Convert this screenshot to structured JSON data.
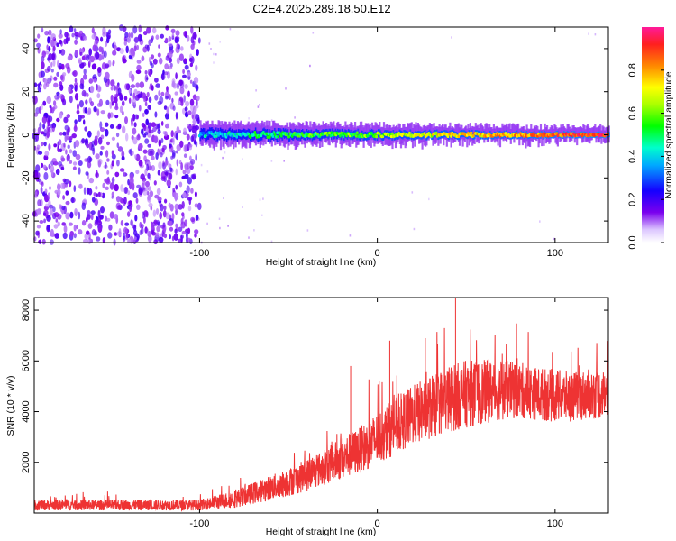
{
  "title": "C2E4.2025.289.18.50.E12",
  "colors": {
    "snr_line": "#ee3333",
    "frame": "#000000",
    "background": "#ffffff"
  },
  "chart_data": [
    {
      "type": "heatmap",
      "name": "spectrogram",
      "xlabel": "Height of straight line (km)",
      "ylabel": "Frequency (Hz)",
      "xlim": [
        -193,
        130
      ],
      "ylim": [
        -50,
        50
      ],
      "xticks": [
        -100,
        0,
        100
      ],
      "xtick_labels": [
        "-100",
        "0",
        "100"
      ],
      "yticks": [
        -40,
        -20,
        0,
        20,
        40
      ],
      "ytick_labels": [
        "-40",
        "-20",
        "0",
        "20",
        "40"
      ],
      "noise_region": [
        -193,
        -100
      ],
      "signal_start": -100,
      "signal_center_hz": 0,
      "colorbar": {
        "label": "Normalized spectral amplitude",
        "range": [
          0,
          1
        ],
        "ticks": [
          0.0,
          0.2,
          0.4,
          0.6,
          0.8
        ],
        "tick_labels": [
          "0.0",
          "0.2",
          "0.4",
          "0.6",
          "0.8"
        ]
      }
    },
    {
      "type": "line",
      "name": "snr",
      "xlabel": "Height of straight line (km)",
      "ylabel": "SNR (10 * v/v)",
      "xlim": [
        -193,
        130
      ],
      "ylim": [
        0,
        8500
      ],
      "xticks": [
        -100,
        0,
        100
      ],
      "xtick_labels": [
        "-100",
        "0",
        "100"
      ],
      "yticks": [
        2000,
        4000,
        6000,
        8000
      ],
      "ytick_labels": [
        "2000",
        "4000",
        "6000",
        "8000"
      ],
      "envelope": {
        "x": [
          -193,
          -100,
          -90,
          -80,
          -70,
          -60,
          -50,
          -40,
          -30,
          -20,
          -10,
          0,
          10,
          20,
          30,
          40,
          50,
          60,
          70,
          80,
          90,
          100,
          110,
          120,
          130
        ],
        "base": [
          250,
          250,
          350,
          450,
          650,
          850,
          1050,
          1300,
          1600,
          1900,
          2200,
          2600,
          3100,
          3500,
          3800,
          4100,
          4300,
          4400,
          4500,
          4500,
          4400,
          4300,
          4300,
          4400,
          4400
        ],
        "spread": [
          300,
          300,
          400,
          500,
          600,
          700,
          800,
          900,
          1000,
          1200,
          1300,
          1500,
          1600,
          1700,
          1800,
          1900,
          1900,
          1800,
          1700,
          1600,
          1500,
          1500,
          1400,
          1400,
          1400
        ]
      },
      "peaks": [
        {
          "x": -15,
          "y": 5800
        },
        {
          "x": 7,
          "y": 6800
        },
        {
          "x": 44,
          "y": 8500
        },
        {
          "x": 27,
          "y": 6900
        }
      ]
    }
  ]
}
